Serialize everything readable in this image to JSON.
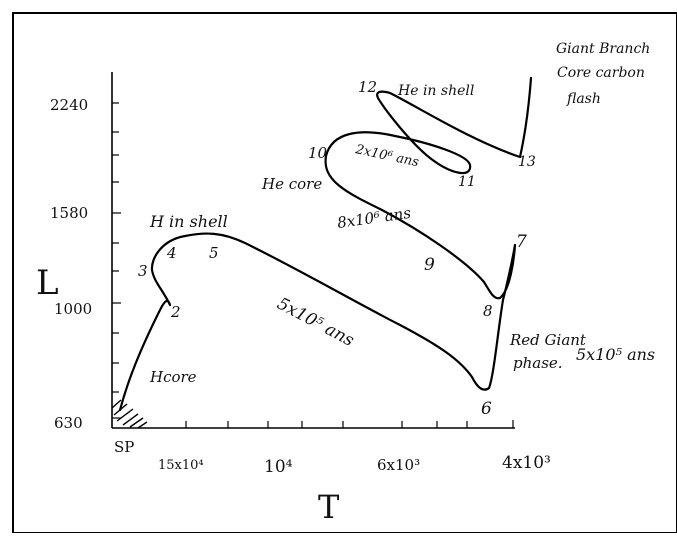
{
  "axes": {
    "y_label": "L",
    "x_label": "T",
    "y_ticks": [
      "2240",
      "1580",
      "1000",
      "630"
    ],
    "x_ticks": [
      "SP",
      "15x10⁴",
      "10⁴",
      "6x10³",
      "4x10³"
    ]
  },
  "points": [
    "2",
    "3",
    "4",
    "5",
    "6",
    "7",
    "8",
    "9",
    "10",
    "11",
    "12",
    "13"
  ],
  "annotations": {
    "h_core": "Hcore",
    "h_in_shell": "H in shell",
    "duration_main": "5x10⁵ ans",
    "red_giant_1": "Red Giant",
    "red_giant_2": "phase.",
    "red_giant_time": "5x10⁵ ans",
    "he_core": "He core",
    "duration_he": "8x10⁶ ans",
    "duration_loop": "2x10⁶ ans",
    "he_in_shell": "He in shell",
    "giant_branch_1": "Giant Branch",
    "giant_branch_2": "Core carbon",
    "giant_branch_3": "flash"
  }
}
